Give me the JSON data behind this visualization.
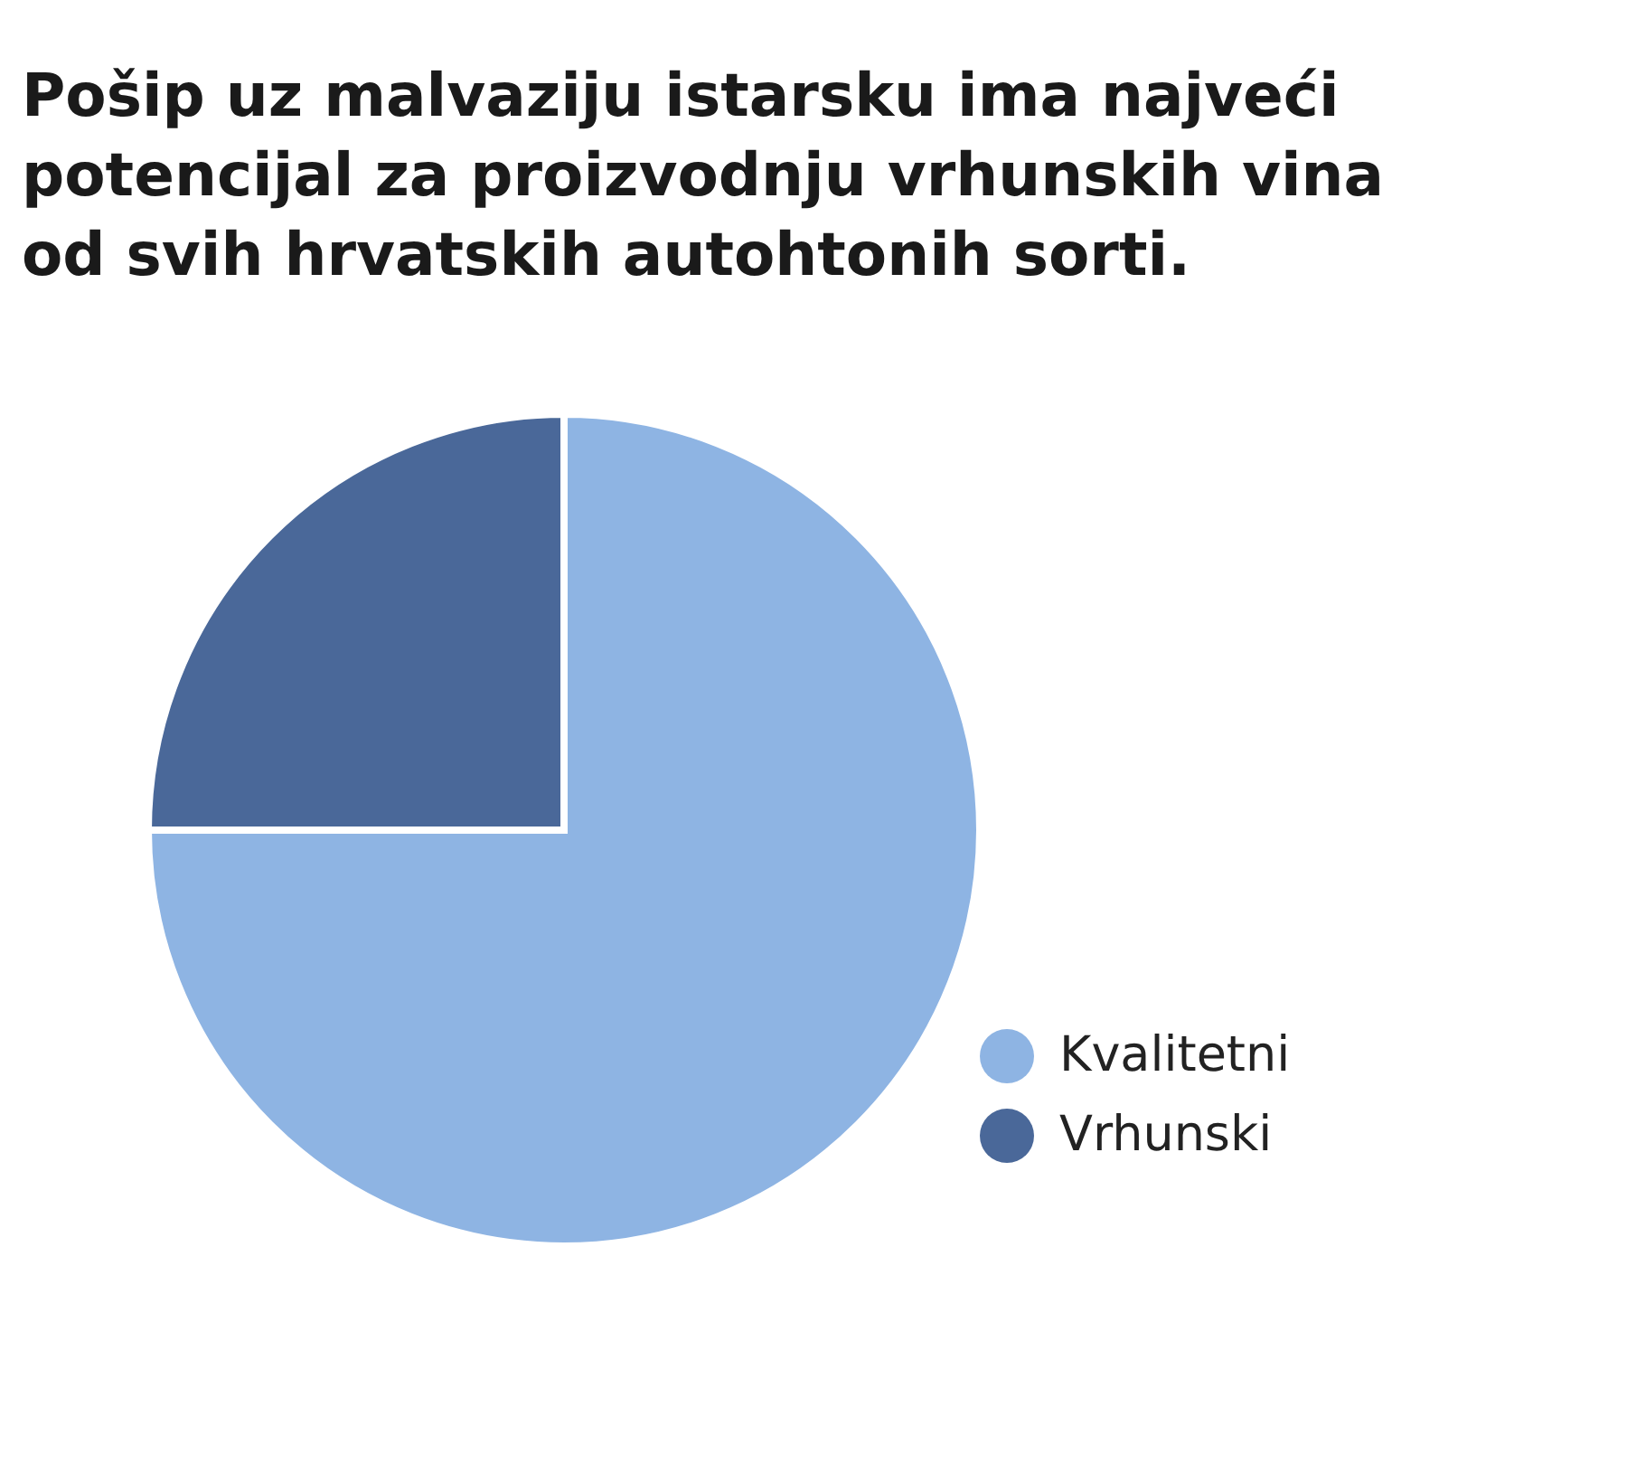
{
  "chart_data": {
    "type": "pie",
    "title": "Pošip uz malvaziju istarsku ima najveći potencijal za proizvodnju vrhunskih vina od svih hrvatskih autohtonih sorti.",
    "categories": [
      "Kvalitetni",
      "Vrhunski"
    ],
    "values": [
      75,
      25
    ],
    "colors": [
      "#8eb4e3",
      "#4a6899"
    ],
    "legend": "bottom right"
  }
}
